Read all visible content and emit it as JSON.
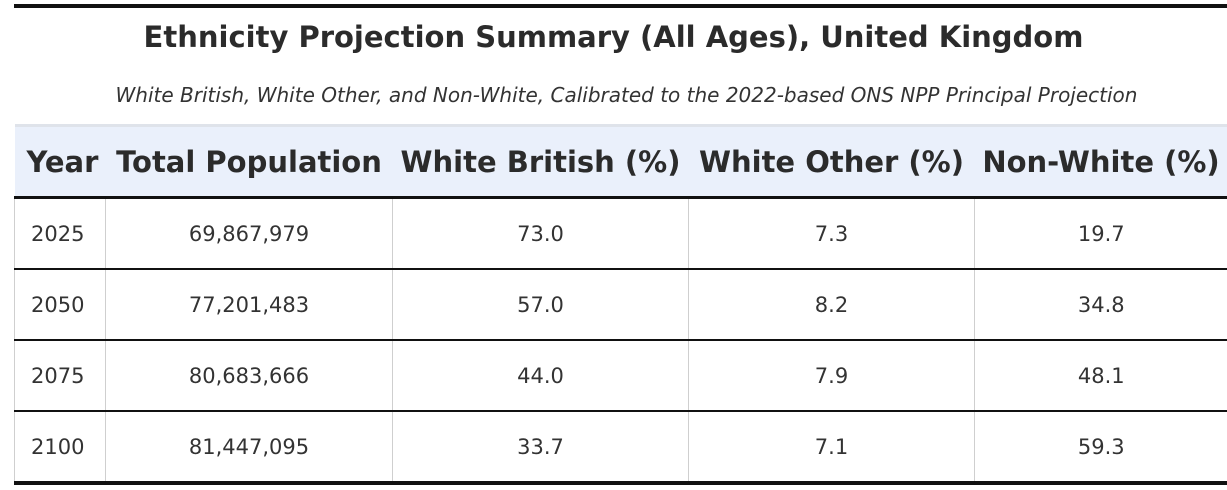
{
  "title": "Ethnicity Projection Summary (All Ages), United Kingdom",
  "subtitle": "White British, White Other, and Non-White, Calibrated to the 2022-based ONS NPP Principal Projection",
  "chart_data": {
    "type": "table",
    "title": "Ethnicity Projection Summary (All Ages), United Kingdom",
    "subtitle": "White British, White Other, and Non-White, Calibrated to the 2022-based ONS NPP Principal Projection",
    "columns": [
      "Year",
      "Total Population",
      "White British (%)",
      "White Other (%)",
      "Non-White (%)"
    ],
    "rows": [
      [
        "2025",
        "69,867,979",
        "73.0",
        "7.3",
        "19.7"
      ],
      [
        "2050",
        "77,201,483",
        "57.0",
        "8.2",
        "34.8"
      ],
      [
        "2075",
        "80,683,666",
        "44.0",
        "7.9",
        "48.1"
      ],
      [
        "2100",
        "81,447,095",
        "33.7",
        "7.1",
        "59.3"
      ]
    ]
  }
}
